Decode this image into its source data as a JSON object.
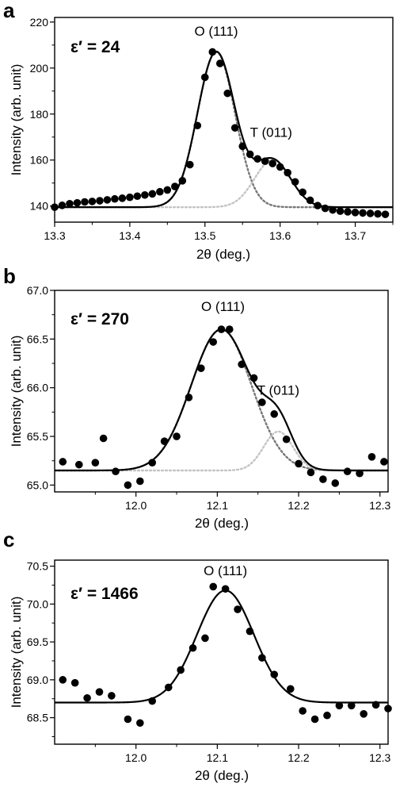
{
  "chart_data": [
    {
      "type": "scatter",
      "panel": "a",
      "eps_label": "ε′ = 24",
      "xlabel": "2θ (deg.)",
      "ylabel": "Intensity (arb. unit)",
      "xlim": [
        13.3,
        13.75
      ],
      "ylim": [
        133,
        222
      ],
      "xticks": [
        13.3,
        13.4,
        13.5,
        13.6,
        13.7
      ],
      "xtick_labels": [
        "13.3",
        "13.4",
        "13.5",
        "13.6",
        "13.7"
      ],
      "yticks": [
        140,
        160,
        180,
        200,
        220
      ],
      "ytick_labels": [
        "140",
        "160",
        "180",
        "200",
        "220"
      ],
      "annotations": [
        {
          "text": "O (111)",
          "x": 13.515,
          "y": 214
        },
        {
          "text": "T (011)",
          "x": 13.588,
          "y": 170
        }
      ],
      "series": [
        {
          "kind": "points",
          "x": [
            13.3,
            13.31,
            13.32,
            13.33,
            13.34,
            13.35,
            13.36,
            13.37,
            13.38,
            13.39,
            13.4,
            13.41,
            13.42,
            13.43,
            13.44,
            13.45,
            13.46,
            13.47,
            13.48,
            13.49,
            13.5,
            13.51,
            13.52,
            13.53,
            13.54,
            13.55,
            13.56,
            13.57,
            13.58,
            13.59,
            13.6,
            13.61,
            13.62,
            13.63,
            13.64,
            13.65,
            13.66,
            13.67,
            13.68,
            13.69,
            13.7,
            13.71,
            13.72,
            13.73,
            13.74
          ],
          "y": [
            139.5,
            140.3,
            141.0,
            141.4,
            141.8,
            142.0,
            142.3,
            142.7,
            143.1,
            143.4,
            143.8,
            144.3,
            144.8,
            145.3,
            146.2,
            147.0,
            148.5,
            151.0,
            158.0,
            175.0,
            196.0,
            207.0,
            202.0,
            189.0,
            174.0,
            166.0,
            162.5,
            160.5,
            159.5,
            158.5,
            157.0,
            154.5,
            150.5,
            146.0,
            142.5,
            140.2,
            139.0,
            138.3,
            137.8,
            137.5,
            137.2,
            137.0,
            136.8,
            136.6,
            136.4
          ]
        },
        {
          "kind": "fit",
          "style": "dotted-gray",
          "peaks": [
            {
              "center": 13.515,
              "amp": 67.5,
              "sigma": 0.025
            }
          ],
          "baseline": 139.5
        },
        {
          "kind": "fit",
          "style": "dotted-light",
          "peaks": [
            {
              "center": 13.59,
              "amp": 20.5,
              "sigma": 0.024
            }
          ],
          "baseline": 139.5
        },
        {
          "kind": "fit",
          "style": "solid",
          "peaks": [
            {
              "center": 13.515,
              "amp": 67.5,
              "sigma": 0.025
            },
            {
              "center": 13.59,
              "amp": 20.5,
              "sigma": 0.024
            }
          ],
          "baseline": 139.5
        }
      ]
    },
    {
      "type": "scatter",
      "panel": "b",
      "eps_label": "ε′ = 270",
      "xlabel": "2θ (deg.)",
      "ylabel": "Intensity (arb. unit)",
      "xlim": [
        11.9,
        12.31
      ],
      "ylim": [
        64.93,
        67.0
      ],
      "xticks": [
        12.0,
        12.1,
        12.2,
        12.3
      ],
      "xtick_labels": [
        "12.0",
        "12.1",
        "12.2",
        "12.3"
      ],
      "yticks": [
        65.0,
        65.5,
        66.0,
        66.5,
        67.0
      ],
      "ytick_labels": [
        "65.0",
        "65.5",
        "66.0",
        "66.5",
        "67.0"
      ],
      "annotations": [
        {
          "text": "O (111)",
          "x": 12.107,
          "y": 66.79
        },
        {
          "text": "T (011)",
          "x": 12.175,
          "y": 65.93
        }
      ],
      "series": [
        {
          "kind": "points",
          "x": [
            11.91,
            11.93,
            11.95,
            11.96,
            11.975,
            11.99,
            12.005,
            12.02,
            12.035,
            12.05,
            12.065,
            12.08,
            12.095,
            12.105,
            12.115,
            12.13,
            12.145,
            12.155,
            12.17,
            12.185,
            12.2,
            12.215,
            12.23,
            12.245,
            12.26,
            12.275,
            12.29,
            12.305
          ],
          "y": [
            65.24,
            65.21,
            65.23,
            65.48,
            65.14,
            65.0,
            65.04,
            65.23,
            65.45,
            65.5,
            65.9,
            66.2,
            66.47,
            66.6,
            66.6,
            66.24,
            66.1,
            65.85,
            65.73,
            65.47,
            65.22,
            65.13,
            65.06,
            65.02,
            65.14,
            65.12,
            65.29,
            65.24
          ]
        },
        {
          "kind": "fit",
          "style": "dotted-gray",
          "peaks": [
            {
              "center": 12.105,
              "amp": 1.45,
              "sigma": 0.037
            }
          ],
          "baseline": 65.15
        },
        {
          "kind": "fit",
          "style": "dotted-light",
          "peaks": [
            {
              "center": 12.175,
              "amp": 0.4,
              "sigma": 0.018
            }
          ],
          "baseline": 65.15
        },
        {
          "kind": "fit",
          "style": "solid",
          "peaks": [
            {
              "center": 12.105,
              "amp": 1.45,
              "sigma": 0.037
            },
            {
              "center": 12.175,
              "amp": 0.4,
              "sigma": 0.018
            }
          ],
          "baseline": 65.15
        }
      ]
    },
    {
      "type": "scatter",
      "panel": "c",
      "eps_label": "ε′ = 1466",
      "xlabel": "2θ (deg.)",
      "ylabel": "Intensity (arb. unit)",
      "xlim": [
        11.9,
        12.31
      ],
      "ylim": [
        68.15,
        70.58
      ],
      "xticks": [
        12.0,
        12.1,
        12.2,
        12.3
      ],
      "xtick_labels": [
        "12.0",
        "12.1",
        "12.2",
        "12.3"
      ],
      "yticks": [
        68.5,
        69.0,
        69.5,
        70.0,
        70.5
      ],
      "ytick_labels": [
        "68.5",
        "69.0",
        "69.5",
        "70.0",
        "70.5"
      ],
      "annotations": [
        {
          "text": "O (111)",
          "x": 12.11,
          "y": 70.38
        }
      ],
      "series": [
        {
          "kind": "points",
          "x": [
            11.91,
            11.925,
            11.94,
            11.955,
            11.97,
            11.99,
            12.005,
            12.02,
            12.04,
            12.055,
            12.07,
            12.085,
            12.095,
            12.11,
            12.125,
            12.14,
            12.155,
            12.17,
            12.19,
            12.205,
            12.22,
            12.235,
            12.25,
            12.265,
            12.28,
            12.295,
            12.31
          ],
          "y": [
            69.0,
            68.96,
            68.76,
            68.84,
            68.79,
            68.48,
            68.43,
            68.72,
            68.9,
            69.13,
            69.42,
            69.55,
            70.23,
            70.2,
            69.93,
            69.64,
            69.29,
            69.07,
            68.88,
            68.59,
            68.48,
            68.53,
            68.66,
            68.66,
            68.55,
            68.67,
            68.62
          ]
        },
        {
          "kind": "fit",
          "style": "solid",
          "peaks": [
            {
              "center": 12.11,
              "amp": 1.48,
              "sigma": 0.035
            }
          ],
          "baseline": 68.7
        }
      ]
    }
  ]
}
